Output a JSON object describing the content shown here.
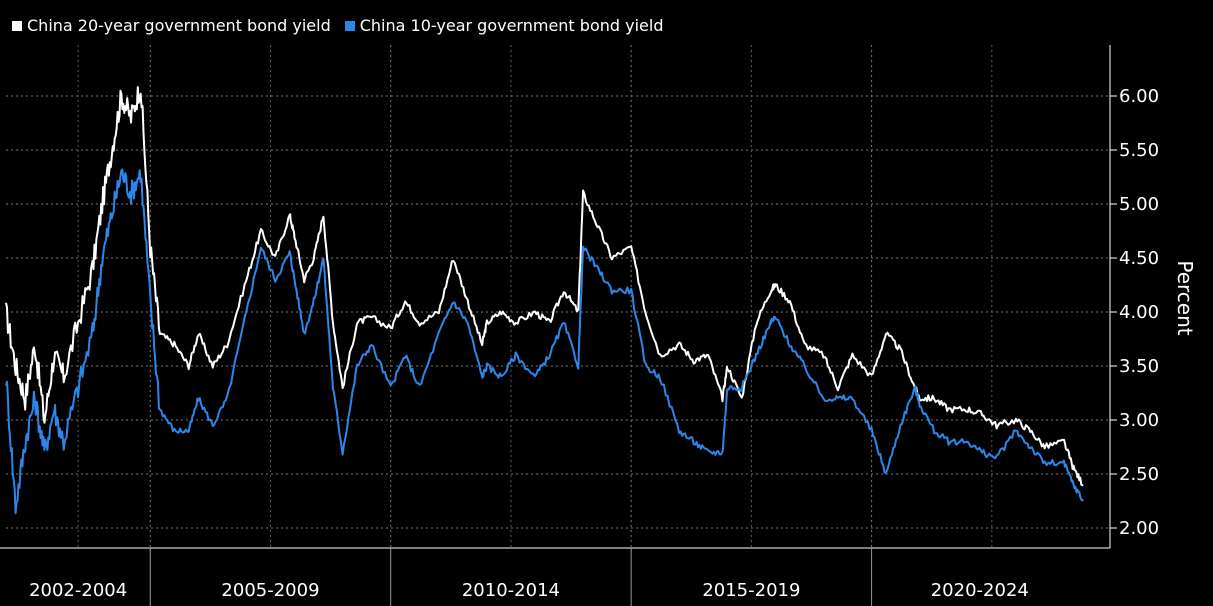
{
  "chart_data": {
    "type": "line",
    "title": "",
    "ylabel": "Percent",
    "ylim": [
      1.8,
      6.5
    ],
    "yticks": [
      "2.00",
      "2.50",
      "3.00",
      "3.50",
      "4.00",
      "4.50",
      "5.00",
      "5.50",
      "6.00"
    ],
    "x_range": [
      2002.0,
      2024.5
    ],
    "x_groups": [
      {
        "label": "2002-2004",
        "start": 2002.0,
        "end": 2005.0
      },
      {
        "label": "2005-2009",
        "start": 2005.0,
        "end": 2010.0
      },
      {
        "label": "2010-2014",
        "start": 2010.0,
        "end": 2015.0
      },
      {
        "label": "2015-2019",
        "start": 2015.0,
        "end": 2020.0
      },
      {
        "label": "2020-2024",
        "start": 2020.0,
        "end": 2024.5
      }
    ],
    "grid": true,
    "legend_position": "top-left",
    "series": [
      {
        "name": "China 20-year government bond yield",
        "color": "#ffffff",
        "x": [
          2002.0,
          2002.2,
          2002.4,
          2002.6,
          2002.8,
          2003.0,
          2003.2,
          2003.5,
          2003.8,
          2004.0,
          2004.2,
          2004.4,
          2004.6,
          2004.8,
          2005.0,
          2005.2,
          2005.5,
          2005.8,
          2006.0,
          2006.3,
          2006.6,
          2007.0,
          2007.3,
          2007.6,
          2007.9,
          2008.0,
          2008.2,
          2008.4,
          2008.6,
          2008.8,
          2009.0,
          2009.3,
          2009.6,
          2010.0,
          2010.3,
          2010.6,
          2011.0,
          2011.3,
          2011.6,
          2011.9,
          2012.0,
          2012.3,
          2012.6,
          2013.0,
          2013.3,
          2013.6,
          2013.9,
          2014.0,
          2014.3,
          2014.6,
          2015.0,
          2015.3,
          2015.6,
          2016.0,
          2016.3,
          2016.6,
          2016.9,
          2017.0,
          2017.3,
          2017.6,
          2017.9,
          2018.0,
          2018.3,
          2018.6,
          2019.0,
          2019.3,
          2019.6,
          2020.0,
          2020.3,
          2020.6,
          2020.9,
          2021.0,
          2021.3,
          2021.6,
          2022.0,
          2022.3,
          2022.6,
          2023.0,
          2023.3,
          2023.6,
          2024.0,
          2024.2,
          2024.4
        ],
        "y": [
          4.0,
          3.5,
          3.2,
          3.7,
          3.0,
          3.6,
          3.4,
          3.9,
          4.4,
          5.0,
          5.5,
          6.0,
          5.8,
          6.1,
          4.6,
          3.8,
          3.7,
          3.5,
          3.8,
          3.5,
          3.7,
          4.3,
          4.75,
          4.5,
          4.9,
          4.7,
          4.3,
          4.5,
          4.9,
          3.9,
          3.3,
          3.9,
          3.95,
          3.85,
          4.1,
          3.9,
          4.0,
          4.5,
          4.1,
          3.7,
          3.9,
          4.0,
          3.9,
          4.0,
          3.9,
          4.2,
          4.0,
          5.1,
          4.8,
          4.5,
          4.6,
          4.0,
          3.6,
          3.7,
          3.55,
          3.6,
          3.2,
          3.5,
          3.2,
          3.9,
          4.2,
          4.25,
          4.1,
          3.7,
          3.6,
          3.3,
          3.6,
          3.4,
          3.8,
          3.65,
          3.3,
          3.2,
          3.2,
          3.1,
          3.1,
          3.05,
          2.95,
          3.0,
          2.9,
          2.75,
          2.8,
          2.55,
          2.4
        ]
      },
      {
        "name": "China 10-year government bond yield",
        "color": "#2b87ea",
        "x": [
          2002.0,
          2002.2,
          2002.4,
          2002.6,
          2002.8,
          2003.0,
          2003.2,
          2003.5,
          2003.8,
          2004.0,
          2004.2,
          2004.4,
          2004.6,
          2004.8,
          2005.0,
          2005.2,
          2005.5,
          2005.8,
          2006.0,
          2006.3,
          2006.6,
          2007.0,
          2007.3,
          2007.6,
          2007.9,
          2008.0,
          2008.2,
          2008.4,
          2008.6,
          2008.8,
          2009.0,
          2009.3,
          2009.6,
          2010.0,
          2010.3,
          2010.6,
          2011.0,
          2011.3,
          2011.6,
          2011.9,
          2012.0,
          2012.3,
          2012.6,
          2013.0,
          2013.3,
          2013.6,
          2013.9,
          2014.0,
          2014.3,
          2014.6,
          2015.0,
          2015.3,
          2015.6,
          2016.0,
          2016.3,
          2016.6,
          2016.9,
          2017.0,
          2017.3,
          2017.6,
          2017.9,
          2018.0,
          2018.3,
          2018.6,
          2019.0,
          2019.3,
          2019.6,
          2020.0,
          2020.3,
          2020.6,
          2020.9,
          2021.0,
          2021.3,
          2021.6,
          2022.0,
          2022.3,
          2022.6,
          2023.0,
          2023.3,
          2023.6,
          2024.0,
          2024.2,
          2024.4
        ],
        "y": [
          3.4,
          2.2,
          2.8,
          3.2,
          2.7,
          3.1,
          2.8,
          3.3,
          3.8,
          4.5,
          4.9,
          5.3,
          5.1,
          5.3,
          4.1,
          3.1,
          2.9,
          2.9,
          3.2,
          2.95,
          3.2,
          4.0,
          4.6,
          4.3,
          4.55,
          4.3,
          3.8,
          4.1,
          4.5,
          3.3,
          2.7,
          3.5,
          3.7,
          3.3,
          3.6,
          3.3,
          3.8,
          4.1,
          3.9,
          3.4,
          3.5,
          3.4,
          3.6,
          3.4,
          3.6,
          3.9,
          3.5,
          4.6,
          4.4,
          4.2,
          4.2,
          3.5,
          3.4,
          2.9,
          2.8,
          2.7,
          2.7,
          3.3,
          3.3,
          3.6,
          3.9,
          3.95,
          3.7,
          3.5,
          3.2,
          3.2,
          3.2,
          2.9,
          2.5,
          2.95,
          3.3,
          3.15,
          2.9,
          2.8,
          2.8,
          2.7,
          2.65,
          2.9,
          2.75,
          2.6,
          2.6,
          2.4,
          2.25
        ]
      }
    ]
  }
}
